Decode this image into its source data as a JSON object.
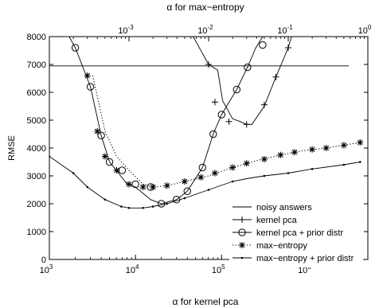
{
  "chart_data": {
    "type": "line",
    "ylabel": "RMSE",
    "xlabel_bottom": "α for kernel pca",
    "xlabel_top": "α for max−entropy",
    "x_scale": "log",
    "x_bottom_range": [
      1000,
      5000000
    ],
    "x_top_range": [
      0.0001,
      1
    ],
    "ylim": [
      0,
      8000
    ],
    "y_ticks": [
      0,
      1000,
      2000,
      3000,
      4000,
      5000,
      6000,
      7000,
      8000
    ],
    "x_bottom_ticks": [
      {
        "value": 1000,
        "base": "10",
        "exp": "3"
      },
      {
        "value": 10000,
        "base": "10",
        "exp": "4"
      },
      {
        "value": 100000,
        "base": "10",
        "exp": "5"
      },
      {
        "value": 1000000,
        "base": "10",
        "exp": "6"
      }
    ],
    "x_top_ticks": [
      {
        "value": 0.001,
        "base": "10",
        "exp": "-3"
      },
      {
        "value": 0.01,
        "base": "10",
        "exp": "-2"
      },
      {
        "value": 0.1,
        "base": "10",
        "exp": "-1"
      },
      {
        "value": 1,
        "base": "10",
        "exp": "0"
      }
    ],
    "legend_position": "bottom-right",
    "series": [
      {
        "name": "noisy answers",
        "axis": "bottom",
        "line": "solid",
        "marker": "none",
        "points": [
          [
            1000,
            6950
          ],
          [
            3000000,
            6950
          ]
        ]
      },
      {
        "name": "kernel pca",
        "axis": "top",
        "line": "solid",
        "marker": "plus",
        "points": [
          [
            0.0064,
            8000
          ],
          [
            0.01,
            7000
          ],
          [
            0.013,
            6800
          ],
          [
            0.015,
            5700
          ],
          [
            0.02,
            5050
          ],
          [
            0.025,
            4950
          ],
          [
            0.03,
            4850
          ],
          [
            0.035,
            4850
          ],
          [
            0.05,
            5500
          ],
          [
            0.07,
            6550
          ],
          [
            0.1,
            7600
          ],
          [
            0.11,
            8000
          ]
        ],
        "marker_points": [
          [
            0.01,
            7000
          ],
          [
            0.012,
            5650
          ],
          [
            0.018,
            4950
          ],
          [
            0.03,
            4850
          ],
          [
            0.05,
            5550
          ],
          [
            0.07,
            6550
          ],
          [
            0.1,
            7600
          ]
        ]
      },
      {
        "name": "kernel pca + prior distr",
        "axis": "bottom",
        "line": "solid",
        "marker": "circle",
        "points": [
          [
            1700,
            8000
          ],
          [
            2000,
            7600
          ],
          [
            3000,
            6200
          ],
          [
            4000,
            4450
          ],
          [
            5000,
            3500
          ],
          [
            6000,
            3200
          ],
          [
            8000,
            2700
          ],
          [
            10000,
            2600
          ],
          [
            15000,
            2150
          ],
          [
            20000,
            2000
          ],
          [
            30000,
            2150
          ],
          [
            40000,
            2450
          ],
          [
            60000,
            3300
          ],
          [
            80000,
            4500
          ],
          [
            100000,
            5200
          ],
          [
            150000,
            6100
          ],
          [
            200000,
            6900
          ],
          [
            250000,
            7600
          ],
          [
            300000,
            8000
          ]
        ],
        "marker_points": [
          [
            2000,
            7600
          ],
          [
            3000,
            6200
          ],
          [
            4000,
            4450
          ],
          [
            5000,
            3500
          ],
          [
            7000,
            3200
          ],
          [
            10000,
            2700
          ],
          [
            15000,
            2600
          ],
          [
            20000,
            2000
          ],
          [
            30000,
            2150
          ],
          [
            40000,
            2450
          ],
          [
            60000,
            3300
          ],
          [
            80000,
            4500
          ],
          [
            100000,
            5200
          ],
          [
            150000,
            6100
          ],
          [
            200000,
            6900
          ],
          [
            300000,
            7700
          ]
        ]
      },
      {
        "name": "max−entropy",
        "axis": "top",
        "line": "dotted",
        "marker": "star",
        "points": [
          [
            0.00035,
            6600
          ],
          [
            0.0005,
            4600
          ],
          [
            0.0007,
            3700
          ],
          [
            0.001,
            3200
          ],
          [
            0.0015,
            2700
          ],
          [
            0.002,
            2600
          ],
          [
            0.003,
            2650
          ],
          [
            0.005,
            2800
          ],
          [
            0.01,
            3000
          ],
          [
            0.02,
            3300
          ],
          [
            0.04,
            3550
          ],
          [
            0.08,
            3750
          ],
          [
            0.15,
            3900
          ],
          [
            0.3,
            4000
          ],
          [
            0.8,
            4200
          ]
        ],
        "marker_points": [
          [
            0.0003,
            6600
          ],
          [
            0.0004,
            4600
          ],
          [
            0.0005,
            3700
          ],
          [
            0.0007,
            3200
          ],
          [
            0.001,
            2700
          ],
          [
            0.0015,
            2600
          ],
          [
            0.002,
            2600
          ],
          [
            0.003,
            2650
          ],
          [
            0.005,
            2800
          ],
          [
            0.008,
            2950
          ],
          [
            0.012,
            3100
          ],
          [
            0.02,
            3300
          ],
          [
            0.03,
            3450
          ],
          [
            0.05,
            3600
          ],
          [
            0.08,
            3750
          ],
          [
            0.12,
            3850
          ],
          [
            0.2,
            3950
          ],
          [
            0.3,
            4000
          ],
          [
            0.5,
            4100
          ],
          [
            0.8,
            4200
          ]
        ]
      },
      {
        "name": "max−entropy + prior distr",
        "axis": "top",
        "line": "solid",
        "marker": "dot",
        "points": [
          [
            0.0001,
            3700
          ],
          [
            0.0002,
            3100
          ],
          [
            0.0003,
            2600
          ],
          [
            0.0005,
            2150
          ],
          [
            0.0008,
            1900
          ],
          [
            0.001,
            1850
          ],
          [
            0.0015,
            1850
          ],
          [
            0.002,
            1900
          ],
          [
            0.003,
            2000
          ],
          [
            0.005,
            2200
          ],
          [
            0.01,
            2500
          ],
          [
            0.02,
            2800
          ],
          [
            0.03,
            2900
          ],
          [
            0.05,
            3000
          ],
          [
            0.1,
            3100
          ],
          [
            0.2,
            3250
          ],
          [
            0.5,
            3400
          ],
          [
            0.8,
            3500
          ]
        ],
        "marker_points": [
          [
            0.0001,
            3700
          ],
          [
            0.0002,
            3100
          ],
          [
            0.0003,
            2600
          ],
          [
            0.0005,
            2150
          ],
          [
            0.0008,
            1900
          ],
          [
            0.001,
            1850
          ],
          [
            0.0015,
            1850
          ],
          [
            0.002,
            1900
          ],
          [
            0.003,
            2000
          ],
          [
            0.005,
            2200
          ],
          [
            0.01,
            2500
          ],
          [
            0.02,
            2800
          ],
          [
            0.05,
            3000
          ],
          [
            0.1,
            3100
          ],
          [
            0.2,
            3250
          ],
          [
            0.5,
            3400
          ],
          [
            0.8,
            3500
          ]
        ]
      }
    ]
  }
}
